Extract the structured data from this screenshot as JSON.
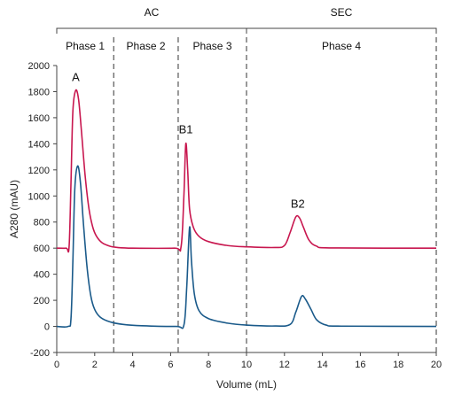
{
  "chart_data": {
    "type": "line",
    "xlabel": "Volume (mL)",
    "ylabel": "A280 (mAU)",
    "xlim": [
      0,
      20
    ],
    "ylim": [
      -200,
      2000
    ],
    "x_ticks": [
      0,
      2,
      4,
      6,
      8,
      10,
      12,
      14,
      16,
      18,
      20
    ],
    "y_ticks": [
      -200,
      0,
      200,
      400,
      600,
      800,
      1000,
      1200,
      1400,
      1600,
      1800,
      2000
    ],
    "groups": [
      {
        "label": "AC",
        "start": 0,
        "end": 10
      },
      {
        "label": "SEC",
        "start": 10,
        "end": 20
      }
    ],
    "phases": [
      {
        "label": "Phase 1",
        "start": 0,
        "end": 3
      },
      {
        "label": "Phase 2",
        "start": 3,
        "end": 6.4
      },
      {
        "label": "Phase 3",
        "start": 6.4,
        "end": 10
      },
      {
        "label": "Phase 4",
        "start": 10,
        "end": 20
      }
    ],
    "boundaries": [
      3,
      6.4,
      10,
      20
    ],
    "series": [
      {
        "color": "#c8174f",
        "points": [
          [
            0,
            600
          ],
          [
            0.5,
            600
          ],
          [
            0.65,
            610
          ],
          [
            0.75,
            1100
          ],
          [
            0.85,
            1650
          ],
          [
            1.0,
            1810
          ],
          [
            1.15,
            1740
          ],
          [
            1.3,
            1500
          ],
          [
            1.5,
            1150
          ],
          [
            1.7,
            900
          ],
          [
            1.9,
            760
          ],
          [
            2.1,
            690
          ],
          [
            2.4,
            640
          ],
          [
            2.8,
            615
          ],
          [
            3.2,
            605
          ],
          [
            4,
            600
          ],
          [
            6.2,
            600
          ],
          [
            6.55,
            610
          ],
          [
            6.7,
            1000
          ],
          [
            6.8,
            1400
          ],
          [
            6.9,
            1200
          ],
          [
            7.0,
            900
          ],
          [
            7.2,
            760
          ],
          [
            7.5,
            690
          ],
          [
            8.0,
            650
          ],
          [
            9.0,
            620
          ],
          [
            10,
            610
          ],
          [
            11.5,
            605
          ],
          [
            12.0,
            620
          ],
          [
            12.3,
            720
          ],
          [
            12.6,
            840
          ],
          [
            12.8,
            830
          ],
          [
            13.0,
            760
          ],
          [
            13.3,
            660
          ],
          [
            13.7,
            615
          ],
          [
            14.5,
            602
          ],
          [
            20,
            600
          ]
        ]
      },
      {
        "color": "#1a5a8a",
        "points": [
          [
            0,
            0
          ],
          [
            0.6,
            0
          ],
          [
            0.75,
            60
          ],
          [
            0.85,
            500
          ],
          [
            0.95,
            1050
          ],
          [
            1.1,
            1230
          ],
          [
            1.25,
            1100
          ],
          [
            1.4,
            800
          ],
          [
            1.6,
            450
          ],
          [
            1.8,
            230
          ],
          [
            2.0,
            130
          ],
          [
            2.3,
            70
          ],
          [
            2.8,
            35
          ],
          [
            3.5,
            15
          ],
          [
            4.5,
            5
          ],
          [
            6.3,
            0
          ],
          [
            6.7,
            10
          ],
          [
            6.85,
            300
          ],
          [
            7.0,
            760
          ],
          [
            7.1,
            500
          ],
          [
            7.25,
            250
          ],
          [
            7.5,
            120
          ],
          [
            8.0,
            60
          ],
          [
            9.0,
            25
          ],
          [
            10,
            10
          ],
          [
            11.5,
            3
          ],
          [
            12.3,
            15
          ],
          [
            12.6,
            110
          ],
          [
            12.9,
            230
          ],
          [
            13.1,
            210
          ],
          [
            13.4,
            130
          ],
          [
            13.7,
            50
          ],
          [
            14.2,
            10
          ],
          [
            15,
            2
          ],
          [
            20,
            0
          ]
        ]
      }
    ],
    "peak_labels": [
      {
        "text": "A",
        "x": 1.0,
        "y": 1880
      },
      {
        "text": "B1",
        "x": 6.8,
        "y": 1480
      },
      {
        "text": "B2",
        "x": 12.7,
        "y": 910
      }
    ]
  }
}
